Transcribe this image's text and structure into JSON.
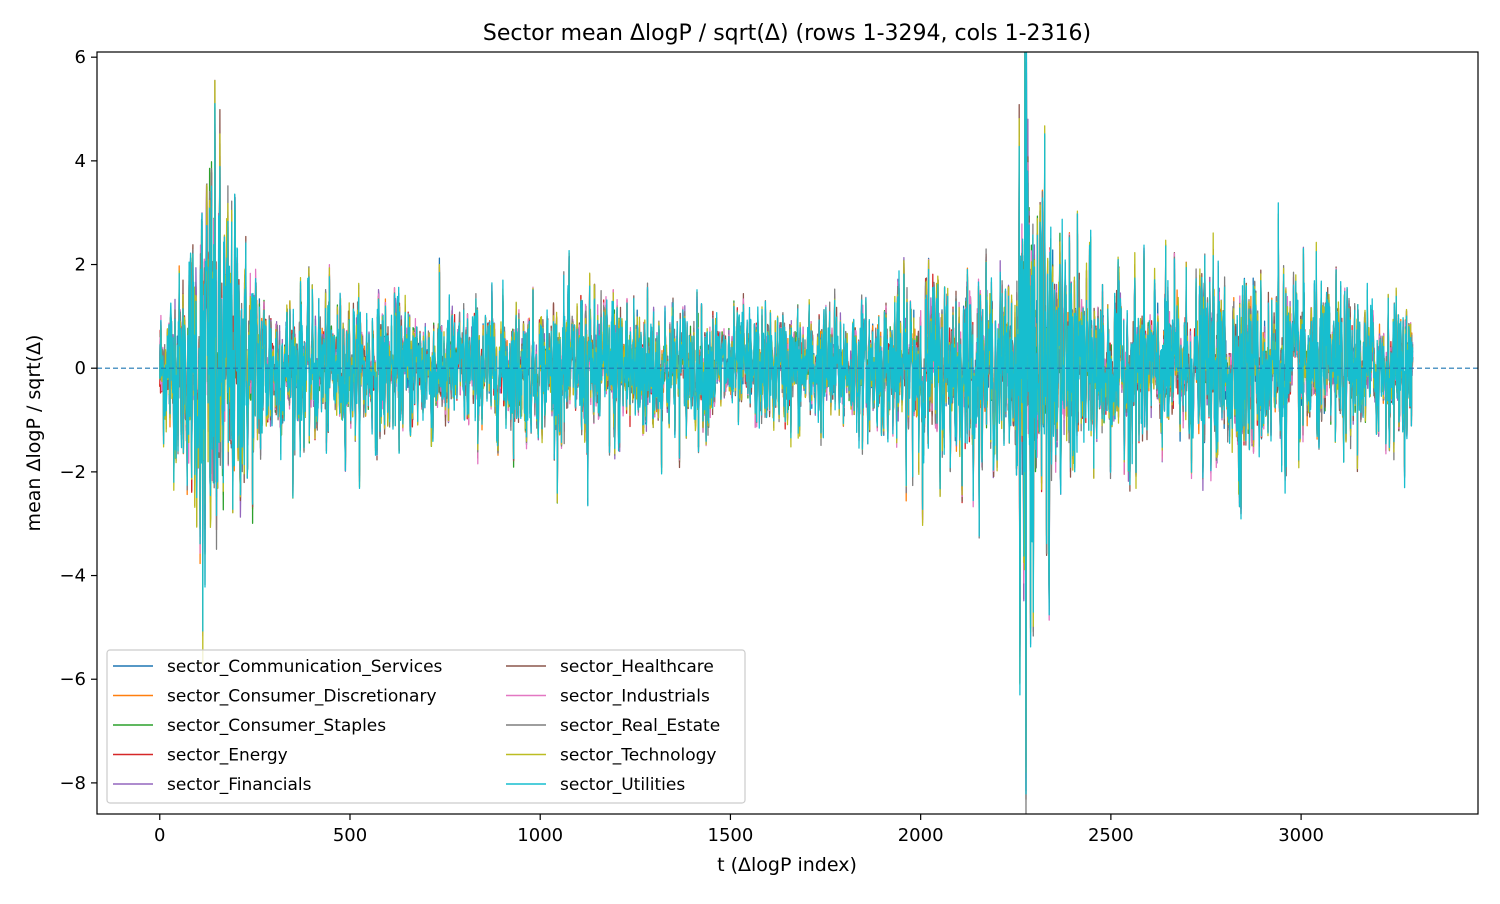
{
  "chart_data": {
    "type": "line",
    "title": "Sector mean ΔlogP / sqrt(Δ) (rows 1-3294, cols 1-2316)",
    "xlabel": "t (ΔlogP index)",
    "ylabel": "mean ΔlogP / sqrt(Δ)",
    "xlim": [
      -165,
      3465
    ],
    "ylim": [
      -8.6,
      6.1
    ],
    "xticks": [
      0,
      500,
      1000,
      1500,
      2000,
      2500,
      3000
    ],
    "xtick_labels": [
      "0",
      "500",
      "1000",
      "1500",
      "2000",
      "2500",
      "3000"
    ],
    "yticks": [
      -8,
      -6,
      -4,
      -2,
      0,
      2,
      4,
      6
    ],
    "ytick_labels": [
      "−8",
      "−6",
      "−4",
      "−2",
      "0",
      "2",
      "4",
      "6"
    ],
    "grid": false,
    "reference_line": {
      "y": 0,
      "style": "dashed",
      "color": "#1f77b4"
    },
    "legend": {
      "placement": "lower-left",
      "columns": 2
    },
    "x_range": [
      0,
      3293
    ],
    "series": [
      {
        "name": "sector_Communication_Services",
        "color": "#1f77b4"
      },
      {
        "name": "sector_Consumer_Discretionary",
        "color": "#ff7f0e"
      },
      {
        "name": "sector_Consumer_Staples",
        "color": "#2ca02c"
      },
      {
        "name": "sector_Energy",
        "color": "#d62728"
      },
      {
        "name": "sector_Financials",
        "color": "#9467bd"
      },
      {
        "name": "sector_Healthcare",
        "color": "#8c564b"
      },
      {
        "name": "sector_Industrials",
        "color": "#e377c2"
      },
      {
        "name": "sector_Real_Estate",
        "color": "#7f7f7f"
      },
      {
        "name": "sector_Technology",
        "color": "#bcbd22"
      },
      {
        "name": "sector_Utilities",
        "color": "#17becf"
      }
    ],
    "volatility_envelope": {
      "description_points_t": [
        0,
        60,
        110,
        120,
        200,
        300,
        600,
        1000,
        1200,
        1500,
        1900,
        2000,
        2250,
        2275,
        2290,
        2350,
        2500,
        2800,
        2940,
        3100,
        3293
      ],
      "amplitude": [
        0.6,
        0.9,
        1.6,
        2.2,
        1.4,
        0.7,
        0.6,
        0.6,
        0.75,
        0.5,
        0.6,
        0.9,
        0.8,
        3.5,
        2.2,
        1.2,
        0.75,
        0.85,
        0.8,
        0.7,
        0.6
      ]
    },
    "notable_extremes": [
      {
        "t": 113,
        "y": 3.4
      },
      {
        "t": 113,
        "y": -5.0
      },
      {
        "t": 198,
        "y": 2.85
      },
      {
        "t": 1125,
        "y": -2.45
      },
      {
        "t": 2278,
        "y": 5.4
      },
      {
        "t": 2277,
        "y": -7.95
      },
      {
        "t": 2338,
        "y": -4.5
      },
      {
        "t": 2940,
        "y": 2.9
      },
      {
        "t": 2842,
        "y": -2.8
      }
    ]
  }
}
